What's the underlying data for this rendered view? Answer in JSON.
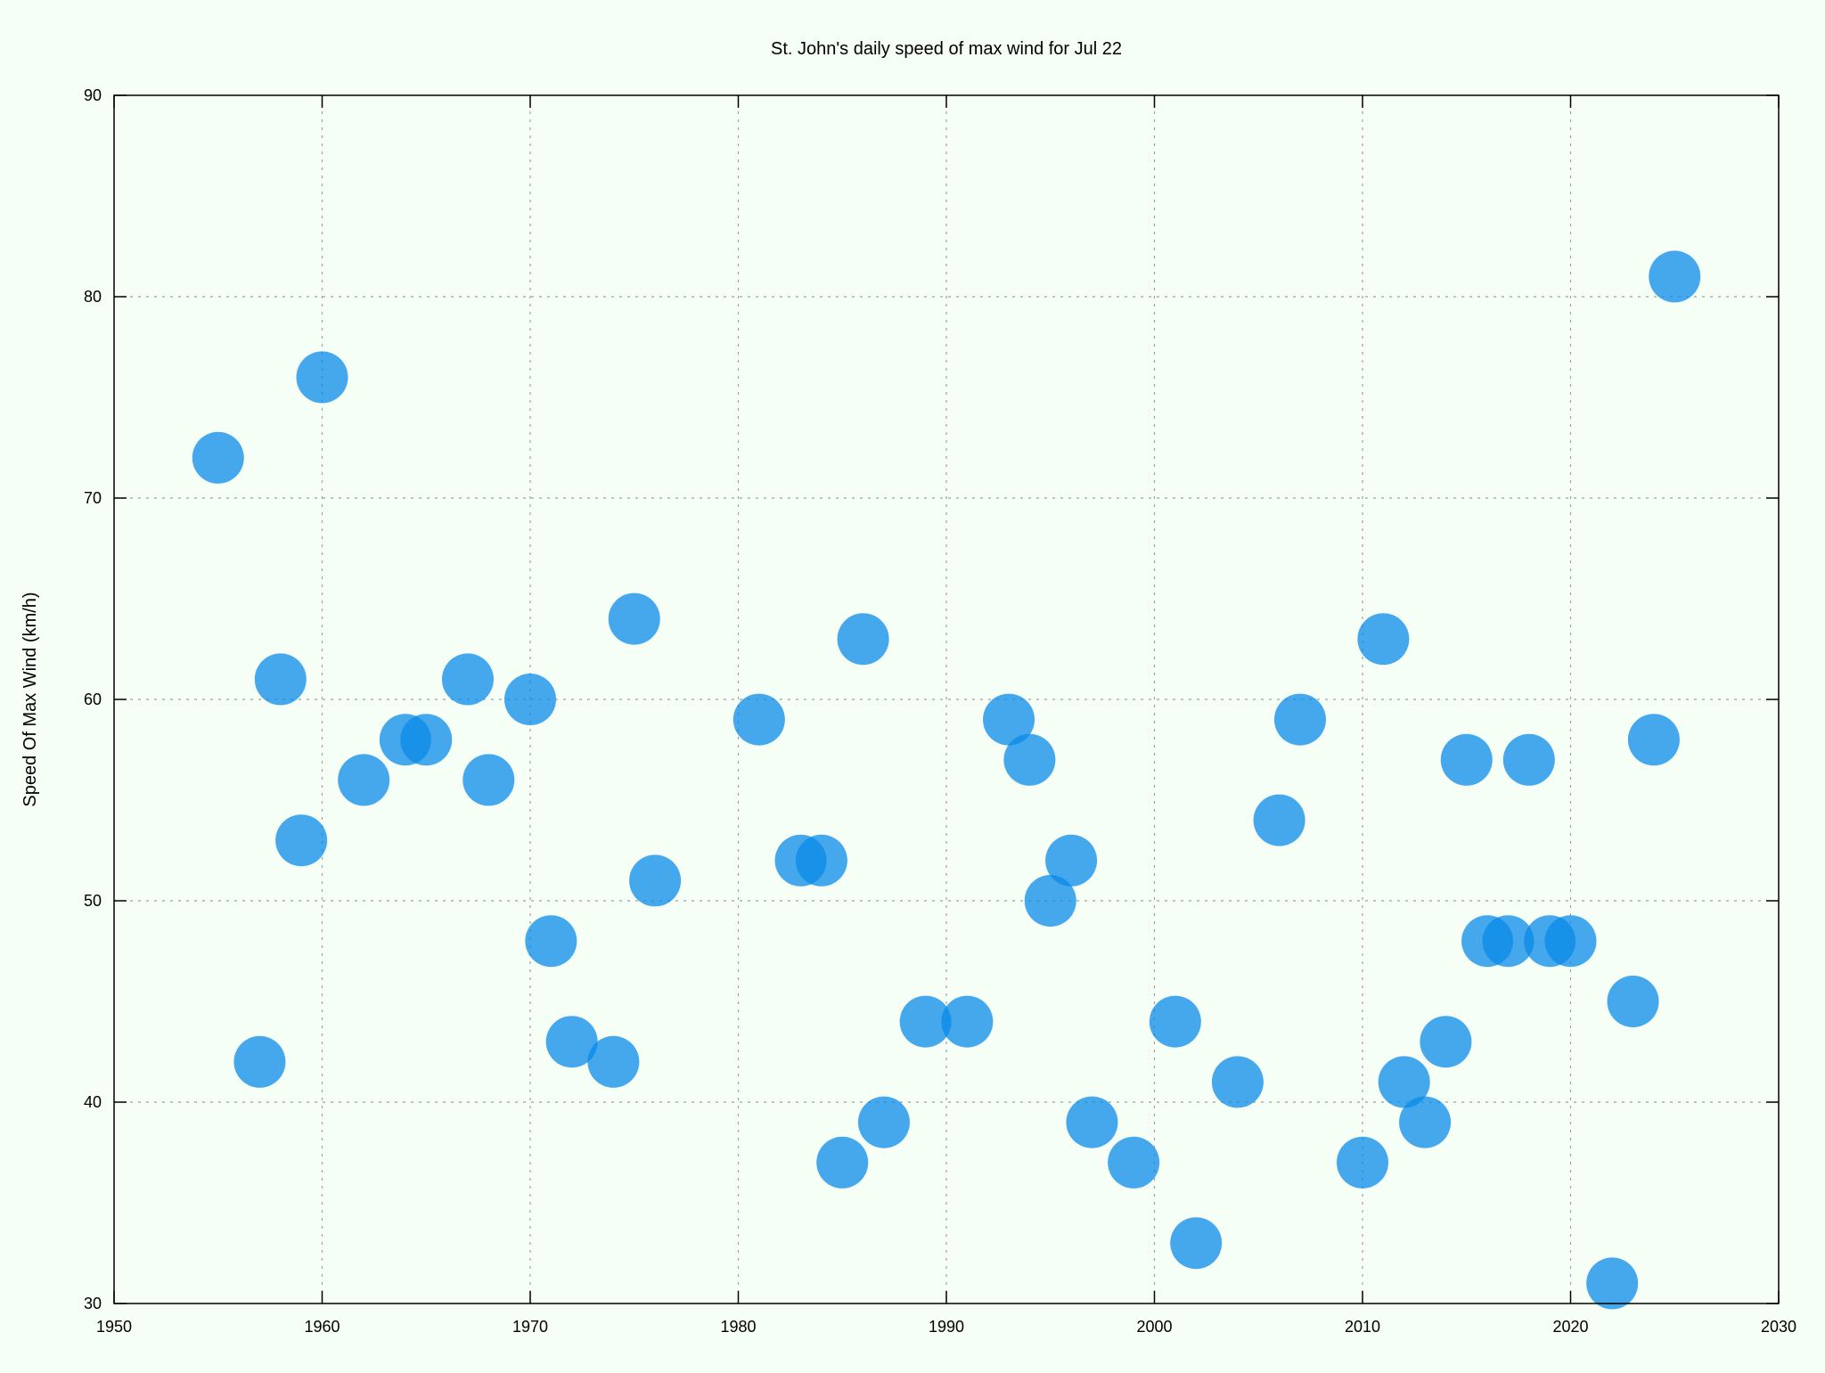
{
  "chart_data": {
    "type": "scatter",
    "title": "St. John's daily speed of max wind for Jul 22",
    "xlabel": "",
    "ylabel": "Speed Of Max Wind (km/h)",
    "xlim": [
      1950,
      2030
    ],
    "ylim": [
      30,
      90
    ],
    "x_ticks": [
      1950,
      1960,
      1970,
      1980,
      1990,
      2000,
      2010,
      2020,
      2030
    ],
    "y_ticks": [
      30,
      40,
      50,
      60,
      70,
      80,
      90
    ],
    "grid": true,
    "legend": "none",
    "point_color": "#0a8ae8",
    "series": [
      {
        "points": [
          [
            1955,
            72
          ],
          [
            1957,
            42
          ],
          [
            1958,
            61
          ],
          [
            1959,
            53
          ],
          [
            1960,
            76
          ],
          [
            1962,
            56
          ],
          [
            1964,
            58
          ],
          [
            1965,
            58
          ],
          [
            1967,
            61
          ],
          [
            1968,
            56
          ],
          [
            1970,
            60
          ],
          [
            1971,
            48
          ],
          [
            1972,
            43
          ],
          [
            1974,
            42
          ],
          [
            1975,
            64
          ],
          [
            1976,
            51
          ],
          [
            1981,
            59
          ],
          [
            1983,
            52
          ],
          [
            1984,
            52
          ],
          [
            1985,
            37
          ],
          [
            1986,
            63
          ],
          [
            1987,
            39
          ],
          [
            1989,
            44
          ],
          [
            1991,
            44
          ],
          [
            1993,
            59
          ],
          [
            1994,
            57
          ],
          [
            1995,
            50
          ],
          [
            1996,
            52
          ],
          [
            1997,
            39
          ],
          [
            1999,
            37
          ],
          [
            2001,
            44
          ],
          [
            2002,
            33
          ],
          [
            2004,
            41
          ],
          [
            2006,
            54
          ],
          [
            2007,
            59
          ],
          [
            2010,
            37
          ],
          [
            2011,
            63
          ],
          [
            2012,
            41
          ],
          [
            2013,
            39
          ],
          [
            2014,
            43
          ],
          [
            2015,
            57
          ],
          [
            2016,
            48
          ],
          [
            2017,
            48
          ],
          [
            2018,
            57
          ],
          [
            2019,
            48
          ],
          [
            2020,
            48
          ],
          [
            2022,
            31
          ],
          [
            2023,
            45
          ],
          [
            2024,
            58
          ],
          [
            2025,
            81
          ]
        ]
      }
    ]
  }
}
